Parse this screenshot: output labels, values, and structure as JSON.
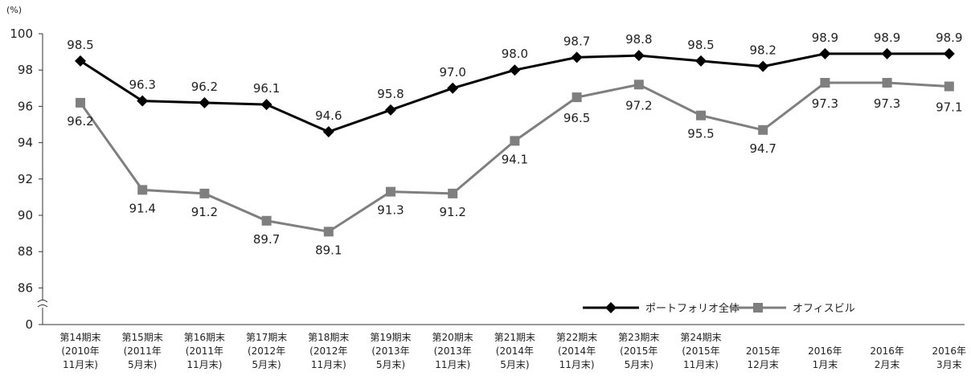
{
  "chart_data": {
    "type": "line",
    "y_unit": "(%)",
    "ylim": [
      0,
      100
    ],
    "axis_break": [
      0,
      85
    ],
    "y_ticks": [
      "0",
      "86",
      "88",
      "90",
      "92",
      "94",
      "96",
      "98",
      "100"
    ],
    "grid": false,
    "legend_position": "bottom-right",
    "categories": [
      [
        "第14期末",
        "(2010年",
        "11月末)"
      ],
      [
        "第15期末",
        "(2011年",
        "5月末)"
      ],
      [
        "第16期末",
        "(2011年",
        "11月末)"
      ],
      [
        "第17期末",
        "(2012年",
        "5月末)"
      ],
      [
        "第18期末",
        "(2012年",
        "11月末)"
      ],
      [
        "第19期末",
        "(2013年",
        "5月末)"
      ],
      [
        "第20期末",
        "(2013年",
        "11月末)"
      ],
      [
        "第21期末",
        "(2014年",
        "5月末)"
      ],
      [
        "第22期末",
        "(2014年",
        "11月末)"
      ],
      [
        "第23期末",
        "(2015年",
        "5月末)"
      ],
      [
        "第24期末",
        "(2015年",
        "11月末)"
      ],
      [
        "2015年",
        "12月末"
      ],
      [
        "2016年",
        "1月末"
      ],
      [
        "2016年",
        "2月末"
      ],
      [
        "2016年",
        "3月末"
      ]
    ],
    "series": [
      {
        "name": "ポートフォリオ全体",
        "marker": "diamond",
        "color": "#000000",
        "values": [
          98.5,
          96.3,
          96.2,
          96.1,
          94.6,
          95.8,
          97.0,
          98.0,
          98.7,
          98.8,
          98.5,
          98.2,
          98.9,
          98.9,
          98.9
        ],
        "labels": [
          "98.5",
          "96.3",
          "96.2",
          "96.1",
          "94.6",
          "95.8",
          "97.0",
          "98.0",
          "98.7",
          "98.8",
          "98.5",
          "98.2",
          "98.9",
          "98.9",
          "98.9"
        ]
      },
      {
        "name": "オフィスビル",
        "marker": "square",
        "color": "#7f7f7f",
        "values": [
          96.2,
          91.4,
          91.2,
          89.7,
          89.1,
          91.3,
          91.2,
          94.1,
          96.5,
          97.2,
          95.5,
          94.7,
          97.3,
          97.3,
          97.1
        ],
        "labels": [
          "96.2",
          "91.4",
          "91.2",
          "89.7",
          "89.1",
          "91.3",
          "91.2",
          "94.1",
          "96.5",
          "97.2",
          "95.5",
          "94.7",
          "97.3",
          "97.3",
          "97.1"
        ]
      }
    ]
  }
}
